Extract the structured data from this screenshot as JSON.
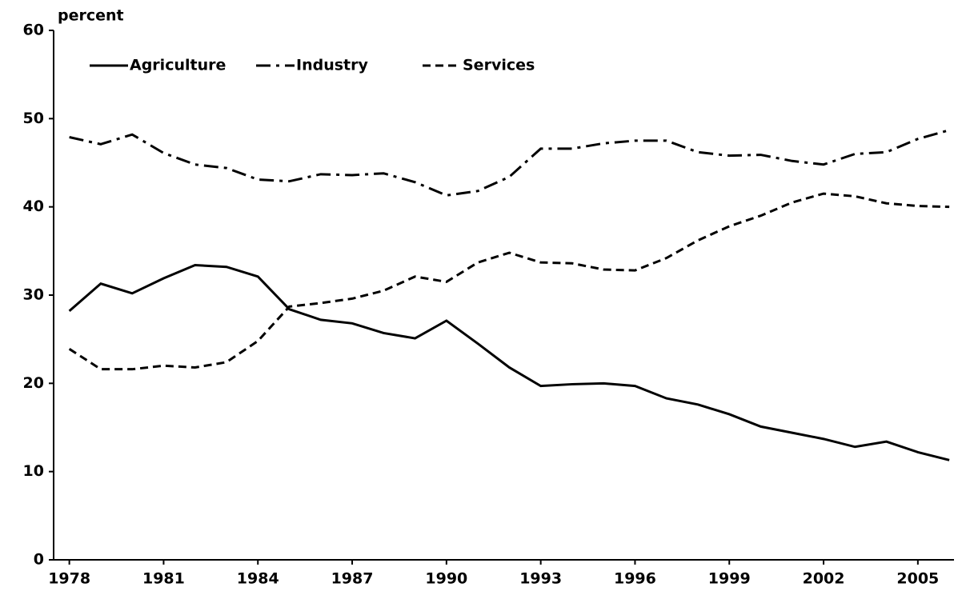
{
  "chart_data": {
    "type": "line",
    "y_label": "percent",
    "x": [
      1978,
      1979,
      1980,
      1981,
      1982,
      1983,
      1984,
      1985,
      1986,
      1987,
      1988,
      1989,
      1990,
      1991,
      1992,
      1993,
      1994,
      1995,
      1996,
      1997,
      1998,
      1999,
      2000,
      2001,
      2002,
      2003,
      2004,
      2005,
      2006
    ],
    "series": [
      {
        "name": "Agriculture",
        "color": "#000000",
        "dash": "solid",
        "values": [
          28.2,
          31.3,
          30.2,
          31.9,
          33.4,
          33.2,
          32.1,
          28.4,
          27.2,
          26.8,
          25.7,
          25.1,
          27.1,
          24.5,
          21.8,
          19.7,
          19.9,
          20.0,
          19.7,
          18.3,
          17.6,
          16.5,
          15.1,
          14.4,
          13.7,
          12.8,
          13.4,
          12.2,
          11.3
        ]
      },
      {
        "name": "Industry",
        "color": "#000000",
        "dash": "dashdot",
        "values": [
          47.9,
          47.1,
          48.2,
          46.1,
          44.8,
          44.4,
          43.1,
          42.9,
          43.7,
          43.6,
          43.8,
          42.8,
          41.3,
          41.8,
          43.4,
          46.6,
          46.6,
          47.2,
          47.5,
          47.5,
          46.2,
          45.8,
          45.9,
          45.2,
          44.8,
          46.0,
          46.2,
          47.7,
          48.7
        ]
      },
      {
        "name": "Services",
        "color": "#000000",
        "dash": "dashed",
        "values": [
          23.9,
          21.6,
          21.6,
          22.0,
          21.8,
          22.4,
          24.8,
          28.7,
          29.1,
          29.6,
          30.5,
          32.1,
          31.5,
          33.7,
          34.8,
          33.7,
          33.6,
          32.9,
          32.8,
          34.2,
          36.2,
          37.8,
          39.0,
          40.5,
          41.5,
          41.2,
          40.4,
          40.1,
          40.0
        ]
      }
    ],
    "xlim": [
      1977.5,
      2006.15
    ],
    "xticks": [
      1978,
      1981,
      1984,
      1987,
      1990,
      1993,
      1996,
      1999,
      2002,
      2005
    ],
    "ylim": [
      0,
      60
    ],
    "yticks": [
      0,
      10,
      20,
      30,
      40,
      50,
      60
    ],
    "grid": false,
    "legend": "top-left"
  }
}
